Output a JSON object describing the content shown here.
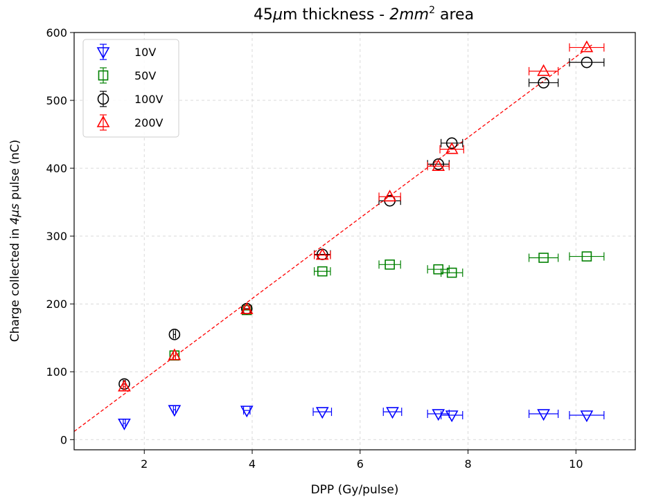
{
  "chart_data": {
    "type": "scatter",
    "title_main": "45",
    "title_mu": "μ",
    "title_m": "m thickness -  ",
    "title_area_var": "2mm",
    "title_sup": "2",
    "title_end": " area",
    "xlabel": "DPP (Gy/pulse)",
    "ylabel_start": "Charge collected in ",
    "ylabel_var": "4μs",
    "ylabel_end": " pulse (nC)",
    "xlim": [
      0.7,
      11.1
    ],
    "ylim": [
      -15,
      600
    ],
    "xticks": [
      2,
      4,
      6,
      8,
      10
    ],
    "yticks": [
      0,
      100,
      200,
      300,
      400,
      500,
      600
    ],
    "grid": true,
    "legend_position": "top-left",
    "series": [
      {
        "name": "10V",
        "label": "10V",
        "marker": "triangle-down",
        "color": "#0000ff",
        "points": [
          {
            "x": 1.63,
            "y": 24,
            "xerr": 0.0
          },
          {
            "x": 2.56,
            "y": 44,
            "xerr": 0.0
          },
          {
            "x": 3.9,
            "y": 43,
            "xerr": 0.06
          },
          {
            "x": 5.3,
            "y": 41,
            "xerr": 0.17
          },
          {
            "x": 6.6,
            "y": 41,
            "xerr": 0.17
          },
          {
            "x": 7.45,
            "y": 38,
            "xerr": 0.2
          },
          {
            "x": 7.7,
            "y": 36,
            "xerr": 0.2
          },
          {
            "x": 9.4,
            "y": 38,
            "xerr": 0.27
          },
          {
            "x": 10.2,
            "y": 36,
            "xerr": 0.32
          }
        ]
      },
      {
        "name": "50V",
        "label": "50V",
        "marker": "square",
        "color": "#008000",
        "points": [
          {
            "x": 2.56,
            "y": 124,
            "xerr": 0.0
          },
          {
            "x": 3.9,
            "y": 191,
            "xerr": 0.06
          },
          {
            "x": 5.3,
            "y": 248,
            "xerr": 0.15
          },
          {
            "x": 6.55,
            "y": 258,
            "xerr": 0.2
          },
          {
            "x": 7.45,
            "y": 251,
            "xerr": 0.2
          },
          {
            "x": 7.7,
            "y": 246,
            "xerr": 0.2
          },
          {
            "x": 9.4,
            "y": 268,
            "xerr": 0.27
          },
          {
            "x": 10.2,
            "y": 270,
            "xerr": 0.32
          }
        ]
      },
      {
        "name": "100V",
        "label": "100V",
        "marker": "circle",
        "color": "#000000",
        "points": [
          {
            "x": 1.63,
            "y": 82,
            "xerr": 0.0
          },
          {
            "x": 2.56,
            "y": 155,
            "xerr": 0.0
          },
          {
            "x": 3.9,
            "y": 193,
            "xerr": 0.06
          },
          {
            "x": 5.3,
            "y": 273,
            "xerr": 0.15
          },
          {
            "x": 6.55,
            "y": 352,
            "xerr": 0.2
          },
          {
            "x": 7.45,
            "y": 406,
            "xerr": 0.2
          },
          {
            "x": 7.7,
            "y": 437,
            "xerr": 0.2
          },
          {
            "x": 9.4,
            "y": 526,
            "xerr": 0.27
          },
          {
            "x": 10.2,
            "y": 556,
            "xerr": 0.32
          }
        ]
      },
      {
        "name": "200V",
        "label": "200V",
        "marker": "triangle-up",
        "color": "#ff0000",
        "points": [
          {
            "x": 1.63,
            "y": 78,
            "xerr": 0.0
          },
          {
            "x": 2.56,
            "y": 124,
            "xerr": 0.0
          },
          {
            "x": 3.9,
            "y": 192,
            "xerr": 0.06
          },
          {
            "x": 5.3,
            "y": 272,
            "xerr": 0.15
          },
          {
            "x": 6.55,
            "y": 358,
            "xerr": 0.2
          },
          {
            "x": 7.45,
            "y": 403,
            "xerr": 0.2
          },
          {
            "x": 7.7,
            "y": 428,
            "xerr": 0.22
          },
          {
            "x": 9.4,
            "y": 543,
            "xerr": 0.27
          },
          {
            "x": 10.2,
            "y": 578,
            "xerr": 0.32
          }
        ]
      }
    ],
    "fit_line": {
      "x": [
        0.7,
        10.3
      ],
      "y": [
        12,
        582
      ],
      "color": "#ff0000",
      "style": "dashed"
    }
  }
}
